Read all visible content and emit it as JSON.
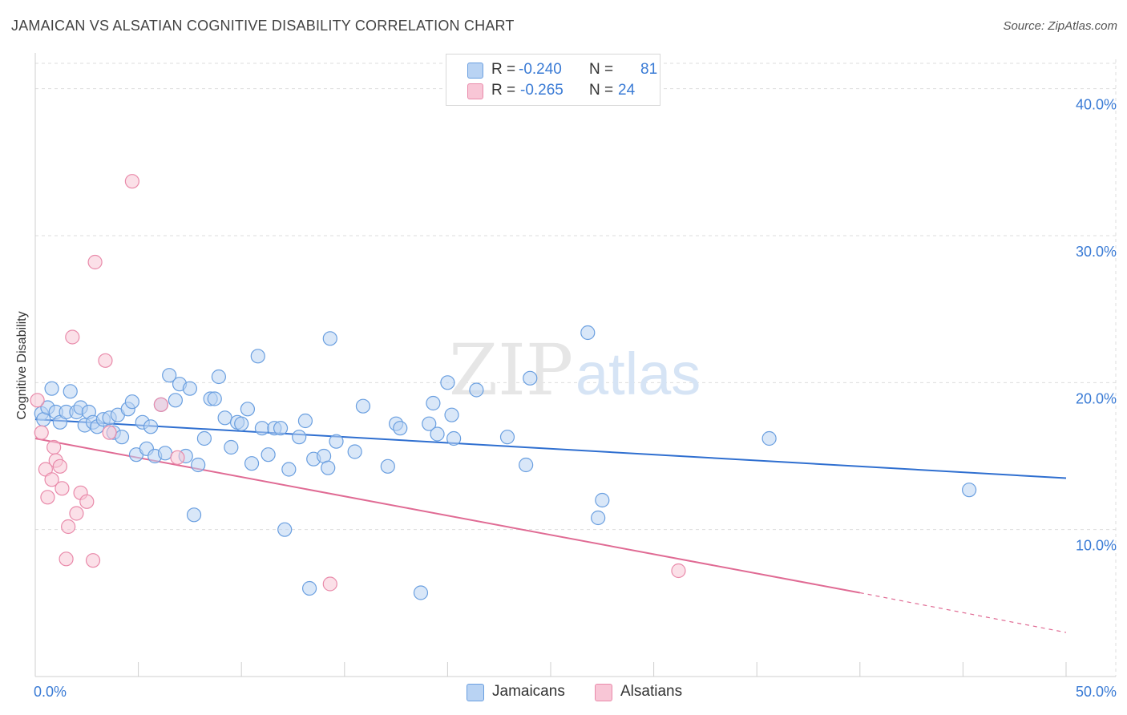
{
  "header": {
    "title": "JAMAICAN VS ALSATIAN COGNITIVE DISABILITY CORRELATION CHART",
    "source": "Source: ZipAtlas.com"
  },
  "watermark": {
    "zip": "ZIP",
    "atlas": "atlas"
  },
  "legend": {
    "rows": [
      {
        "r_label": "R =",
        "r_value": "-0.240",
        "n_label": "N =",
        "n_value": "81"
      },
      {
        "r_label": "R =",
        "r_value": "-0.265",
        "n_label": "N =",
        "n_value": "24"
      }
    ]
  },
  "bottom_legend": {
    "series0": "Jamaicans",
    "series1": "Alsatians"
  },
  "colors": {
    "blue_fill": "#b9d3f3",
    "blue_stroke": "#6a9fe0",
    "blue_line": "#2f6fd0",
    "pink_fill": "#f8c6d6",
    "pink_stroke": "#e98aaa",
    "pink_line": "#e06b94",
    "tick_text": "#3a7bd5",
    "grid": "#dddddd"
  },
  "chart_data": {
    "type": "scatter",
    "title": "JAMAICAN VS ALSATIAN COGNITIVE DISABILITY CORRELATION CHART",
    "xlabel": "",
    "ylabel": "Cognitive Disability",
    "xlim": [
      0,
      50
    ],
    "ylim": [
      0,
      42
    ],
    "x_tick_labels": [
      "0.0%",
      "50.0%"
    ],
    "y_ticks": [
      10,
      20,
      30,
      40
    ],
    "y_tick_labels": [
      "10.0%",
      "20.0%",
      "30.0%",
      "40.0%"
    ],
    "grid": true,
    "legend_position": "top-center",
    "series": [
      {
        "name": "Jamaicans",
        "R": -0.24,
        "N": 81,
        "trend": {
          "x": [
            0,
            50
          ],
          "y": [
            17.5,
            13.5
          ]
        },
        "points": [
          [
            0.3,
            17.9
          ],
          [
            0.4,
            17.5
          ],
          [
            0.6,
            18.3
          ],
          [
            0.8,
            19.6
          ],
          [
            1.0,
            18.0
          ],
          [
            1.2,
            17.3
          ],
          [
            1.5,
            18.0
          ],
          [
            1.7,
            19.4
          ],
          [
            2.0,
            18.0
          ],
          [
            2.2,
            18.3
          ],
          [
            2.4,
            17.1
          ],
          [
            2.6,
            18.0
          ],
          [
            2.8,
            17.3
          ],
          [
            3.0,
            17.0
          ],
          [
            3.3,
            17.5
          ],
          [
            3.6,
            17.6
          ],
          [
            3.8,
            16.6
          ],
          [
            4.0,
            17.8
          ],
          [
            4.2,
            16.3
          ],
          [
            4.5,
            18.2
          ],
          [
            4.7,
            18.7
          ],
          [
            4.9,
            15.1
          ],
          [
            5.2,
            17.3
          ],
          [
            5.4,
            15.5
          ],
          [
            5.6,
            17.0
          ],
          [
            5.8,
            15.0
          ],
          [
            6.1,
            18.5
          ],
          [
            6.3,
            15.2
          ],
          [
            6.5,
            20.5
          ],
          [
            6.8,
            18.8
          ],
          [
            7.0,
            19.9
          ],
          [
            7.3,
            15.0
          ],
          [
            7.5,
            19.6
          ],
          [
            7.7,
            11.0
          ],
          [
            7.9,
            14.4
          ],
          [
            8.2,
            16.2
          ],
          [
            8.5,
            18.9
          ],
          [
            8.7,
            18.9
          ],
          [
            8.9,
            20.4
          ],
          [
            9.2,
            17.6
          ],
          [
            9.5,
            15.6
          ],
          [
            9.8,
            17.3
          ],
          [
            10.0,
            17.2
          ],
          [
            10.3,
            18.2
          ],
          [
            10.5,
            14.5
          ],
          [
            10.8,
            21.8
          ],
          [
            11.0,
            16.9
          ],
          [
            11.3,
            15.1
          ],
          [
            11.6,
            16.9
          ],
          [
            11.9,
            16.9
          ],
          [
            12.1,
            10.0
          ],
          [
            12.3,
            14.1
          ],
          [
            12.8,
            16.3
          ],
          [
            13.1,
            17.4
          ],
          [
            13.3,
            6.0
          ],
          [
            13.5,
            14.8
          ],
          [
            14.3,
            23.0
          ],
          [
            14.0,
            15.0
          ],
          [
            14.2,
            14.2
          ],
          [
            14.6,
            16.0
          ],
          [
            15.5,
            15.3
          ],
          [
            15.9,
            18.4
          ],
          [
            17.1,
            14.3
          ],
          [
            17.5,
            17.2
          ],
          [
            17.7,
            16.9
          ],
          [
            19.1,
            17.2
          ],
          [
            19.3,
            18.6
          ],
          [
            19.5,
            16.5
          ],
          [
            20.0,
            20.0
          ],
          [
            20.2,
            17.8
          ],
          [
            20.3,
            16.2
          ],
          [
            21.4,
            19.5
          ],
          [
            22.9,
            16.3
          ],
          [
            18.7,
            5.7
          ],
          [
            23.8,
            14.4
          ],
          [
            24.0,
            20.3
          ],
          [
            26.8,
            23.4
          ],
          [
            27.3,
            10.8
          ],
          [
            27.5,
            12.0
          ],
          [
            35.6,
            16.2
          ],
          [
            45.3,
            12.7
          ]
        ]
      },
      {
        "name": "Alsatians",
        "R": -0.265,
        "N": 24,
        "trend": {
          "x": [
            0,
            40
          ],
          "y": [
            16.2,
            5.7
          ],
          "dashed_to": {
            "x": 50,
            "y": 3.0
          }
        },
        "points": [
          [
            0.1,
            18.8
          ],
          [
            0.3,
            16.6
          ],
          [
            0.5,
            14.1
          ],
          [
            0.6,
            12.2
          ],
          [
            0.8,
            13.4
          ],
          [
            0.9,
            15.6
          ],
          [
            1.0,
            14.7
          ],
          [
            1.2,
            14.3
          ],
          [
            1.3,
            12.8
          ],
          [
            1.5,
            8.0
          ],
          [
            1.6,
            10.2
          ],
          [
            1.8,
            23.1
          ],
          [
            2.0,
            11.1
          ],
          [
            2.2,
            12.5
          ],
          [
            2.5,
            11.9
          ],
          [
            2.8,
            7.9
          ],
          [
            2.9,
            28.2
          ],
          [
            3.4,
            21.5
          ],
          [
            3.6,
            16.6
          ],
          [
            4.7,
            33.7
          ],
          [
            6.1,
            18.5
          ],
          [
            6.9,
            14.9
          ],
          [
            14.3,
            6.3
          ],
          [
            31.2,
            7.2
          ]
        ]
      }
    ]
  }
}
